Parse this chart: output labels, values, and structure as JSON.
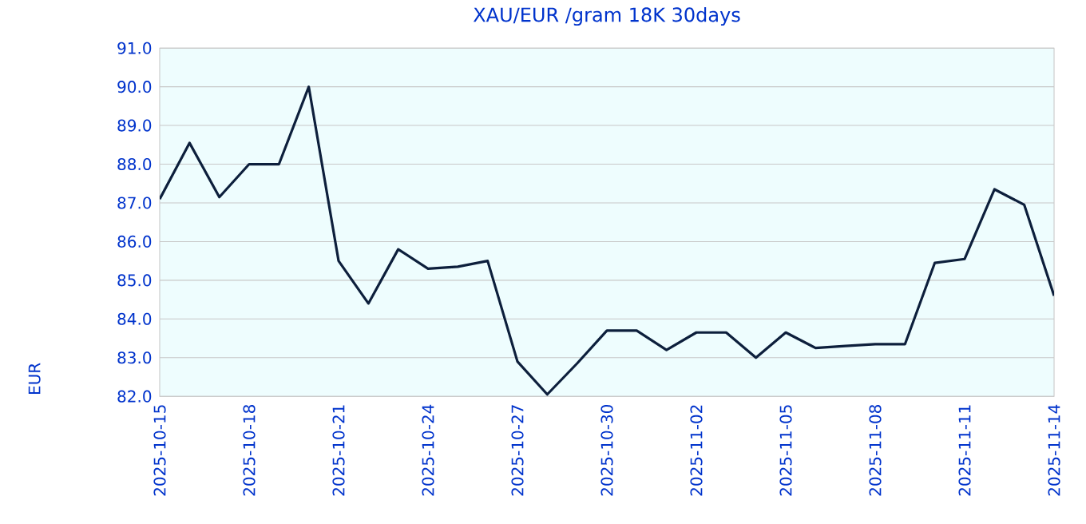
{
  "chart_data": {
    "type": "line",
    "title": "XAU/EUR /gram 18K 30days",
    "ylabel": "EUR",
    "x": [
      "2025-10-15",
      "2025-10-16",
      "2025-10-17",
      "2025-10-18",
      "2025-10-19",
      "2025-10-20",
      "2025-10-21",
      "2025-10-22",
      "2025-10-23",
      "2025-10-24",
      "2025-10-25",
      "2025-10-26",
      "2025-10-27",
      "2025-10-28",
      "2025-10-29",
      "2025-10-30",
      "2025-10-31",
      "2025-11-01",
      "2025-11-02",
      "2025-11-03",
      "2025-11-04",
      "2025-11-05",
      "2025-11-06",
      "2025-11-07",
      "2025-11-08",
      "2025-11-09",
      "2025-11-10",
      "2025-11-11",
      "2025-11-12",
      "2025-11-13",
      "2025-11-14"
    ],
    "series": [
      {
        "color": "#0d1f3c",
        "values": [
          87.1,
          88.55,
          87.15,
          88.0,
          88.0,
          90.0,
          85.5,
          84.4,
          85.8,
          85.3,
          85.35,
          85.5,
          82.9,
          82.05,
          82.85,
          83.7,
          83.7,
          83.2,
          83.65,
          83.65,
          83.0,
          83.65,
          83.25,
          83.3,
          83.35,
          83.35,
          85.45,
          85.55,
          87.35,
          86.95,
          84.6
        ]
      }
    ],
    "xlim": [
      "2025-10-15",
      "2025-11-14"
    ],
    "xticks": [
      "2025-10-15",
      "2025-10-18",
      "2025-10-21",
      "2025-10-24",
      "2025-10-27",
      "2025-10-30",
      "2025-11-02",
      "2025-11-05",
      "2025-11-08",
      "2025-11-11",
      "2025-11-14"
    ],
    "ylim": [
      82.0,
      91.0
    ],
    "yticks": [
      {
        "value": 82,
        "label": "82.0"
      },
      {
        "value": 83,
        "label": "83.0"
      },
      {
        "value": 84,
        "label": "84.0"
      },
      {
        "value": 85,
        "label": "85.0"
      },
      {
        "value": 86,
        "label": "86.0"
      },
      {
        "value": 87,
        "label": "87.0"
      },
      {
        "value": 88,
        "label": "88.0"
      },
      {
        "value": 89,
        "label": "89.0"
      },
      {
        "value": 90,
        "label": "90.0"
      },
      {
        "value": 91,
        "label": "91.0"
      }
    ],
    "grid": "y",
    "marker": "none",
    "line_style": "solid"
  }
}
